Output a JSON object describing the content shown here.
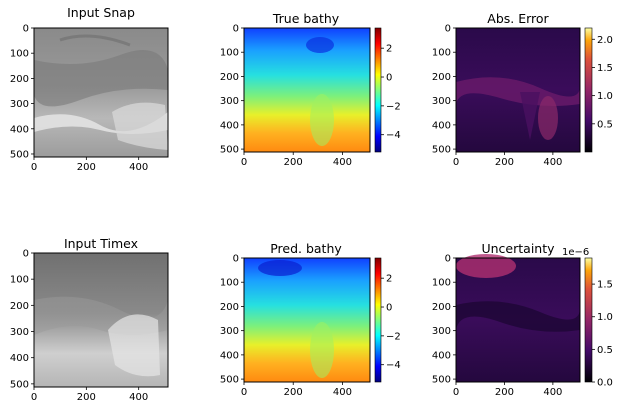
{
  "chart_data": [
    {
      "type": "heatmap",
      "title": "Input Snap",
      "colormap": "gray",
      "xticks": [
        "0",
        "200",
        "400"
      ],
      "yticks": [
        "0",
        "100",
        "200",
        "300",
        "400",
        "500"
      ],
      "xlim": [
        0,
        512
      ],
      "ylim": [
        512,
        0
      ]
    },
    {
      "type": "heatmap",
      "title": "True bathy",
      "colormap": "jet",
      "xticks": [
        "0",
        "200",
        "400"
      ],
      "yticks": [
        "0",
        "100",
        "200",
        "300",
        "400",
        "500"
      ],
      "xlim": [
        0,
        512
      ],
      "ylim": [
        512,
        0
      ],
      "colorbar": {
        "ticks": [
          "2",
          "0",
          "−2",
          "−4"
        ],
        "range": [
          -5.2,
          3.4
        ]
      }
    },
    {
      "type": "heatmap",
      "title": "Abs. Error",
      "colormap": "inferno",
      "xticks": [
        "0",
        "200",
        "400"
      ],
      "yticks": [
        "0",
        "100",
        "200",
        "300",
        "400",
        "500"
      ],
      "xlim": [
        0,
        512
      ],
      "ylim": [
        512,
        0
      ],
      "colorbar": {
        "ticks": [
          "2.0",
          "1.5",
          "1.0",
          "0.5"
        ],
        "range": [
          0.0,
          2.2
        ]
      }
    },
    {
      "type": "heatmap",
      "title": "Input Timex",
      "colormap": "gray",
      "xticks": [
        "0",
        "200",
        "400"
      ],
      "yticks": [
        "0",
        "100",
        "200",
        "300",
        "400",
        "500"
      ],
      "xlim": [
        0,
        512
      ],
      "ylim": [
        512,
        0
      ]
    },
    {
      "type": "heatmap",
      "title": "Pred. bathy",
      "colormap": "jet",
      "xticks": [
        "0",
        "200",
        "400"
      ],
      "yticks": [
        "0",
        "100",
        "200",
        "300",
        "400",
        "500"
      ],
      "xlim": [
        0,
        512
      ],
      "ylim": [
        512,
        0
      ],
      "colorbar": {
        "ticks": [
          "2",
          "0",
          "−2",
          "−4"
        ],
        "range": [
          -5.2,
          3.4
        ]
      }
    },
    {
      "type": "heatmap",
      "title": "Uncertainty",
      "colormap": "inferno",
      "xticks": [
        "0",
        "200",
        "400"
      ],
      "yticks": [
        "0",
        "100",
        "200",
        "300",
        "400",
        "500"
      ],
      "xlim": [
        0,
        512
      ],
      "ylim": [
        512,
        0
      ],
      "colorbar": {
        "ticks": [
          "1.5",
          "1.0",
          "0.5",
          "0.0"
        ],
        "range": [
          0.0,
          1.9
        ],
        "offset_text": "1e−6"
      }
    }
  ]
}
